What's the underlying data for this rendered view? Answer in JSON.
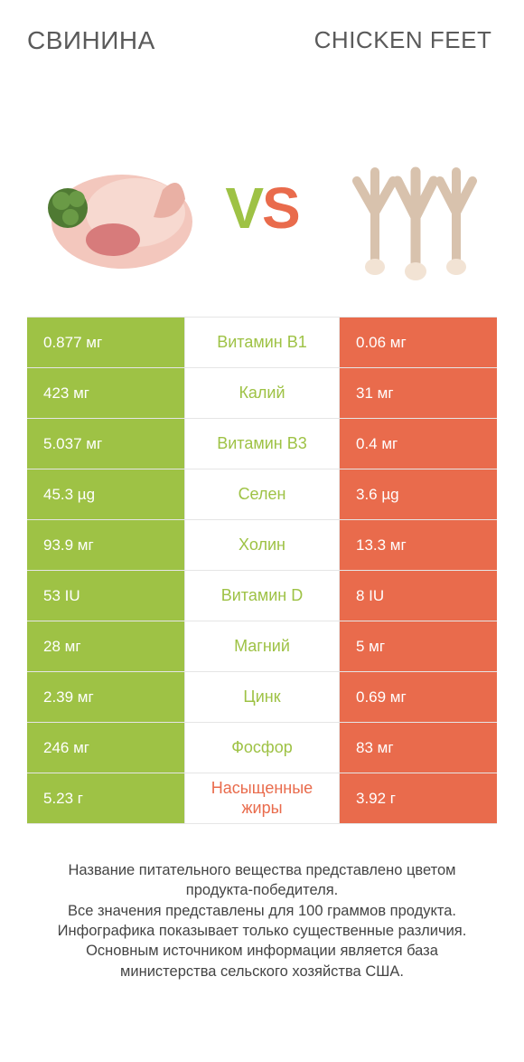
{
  "colors": {
    "left_bg": "#9ec245",
    "right_bg": "#e96b4c",
    "left_text": "#9ec245",
    "right_text": "#e96b4c",
    "vs_v": "#9ec245",
    "vs_s": "#e96b4c",
    "body_text": "#444444",
    "border": "#e5e5e5"
  },
  "header": {
    "left_title": "Свинина",
    "right_title": "Chicken feet"
  },
  "vs": {
    "v": "V",
    "s": "S"
  },
  "rows": [
    {
      "left": "0.877 мг",
      "label": "Витамин B1",
      "right": "0.06 мг",
      "winner": "left"
    },
    {
      "left": "423 мг",
      "label": "Калий",
      "right": "31 мг",
      "winner": "left"
    },
    {
      "left": "5.037 мг",
      "label": "Витамин B3",
      "right": "0.4 мг",
      "winner": "left"
    },
    {
      "left": "45.3 µg",
      "label": "Селен",
      "right": "3.6 µg",
      "winner": "left"
    },
    {
      "left": "93.9 мг",
      "label": "Холин",
      "right": "13.3 мг",
      "winner": "left"
    },
    {
      "left": "53 IU",
      "label": "Витамин D",
      "right": "8 IU",
      "winner": "left"
    },
    {
      "left": "28 мг",
      "label": "Магний",
      "right": "5 мг",
      "winner": "left"
    },
    {
      "left": "2.39 мг",
      "label": "Цинк",
      "right": "0.69 мг",
      "winner": "left"
    },
    {
      "left": "246 мг",
      "label": "Фосфор",
      "right": "83 мг",
      "winner": "left"
    },
    {
      "left": "5.23 г",
      "label": "Насыщенные жиры",
      "right": "3.92 г",
      "winner": "right"
    }
  ],
  "footer": {
    "line1": "Название питательного вещества представлено цветом продукта-победителя.",
    "line2": "Все значения представлены для 100 граммов продукта.",
    "line3": "Инфографика показывает только существенные различия.",
    "line4": "Основным источником информации является база министерства сельского хозяйства США."
  }
}
